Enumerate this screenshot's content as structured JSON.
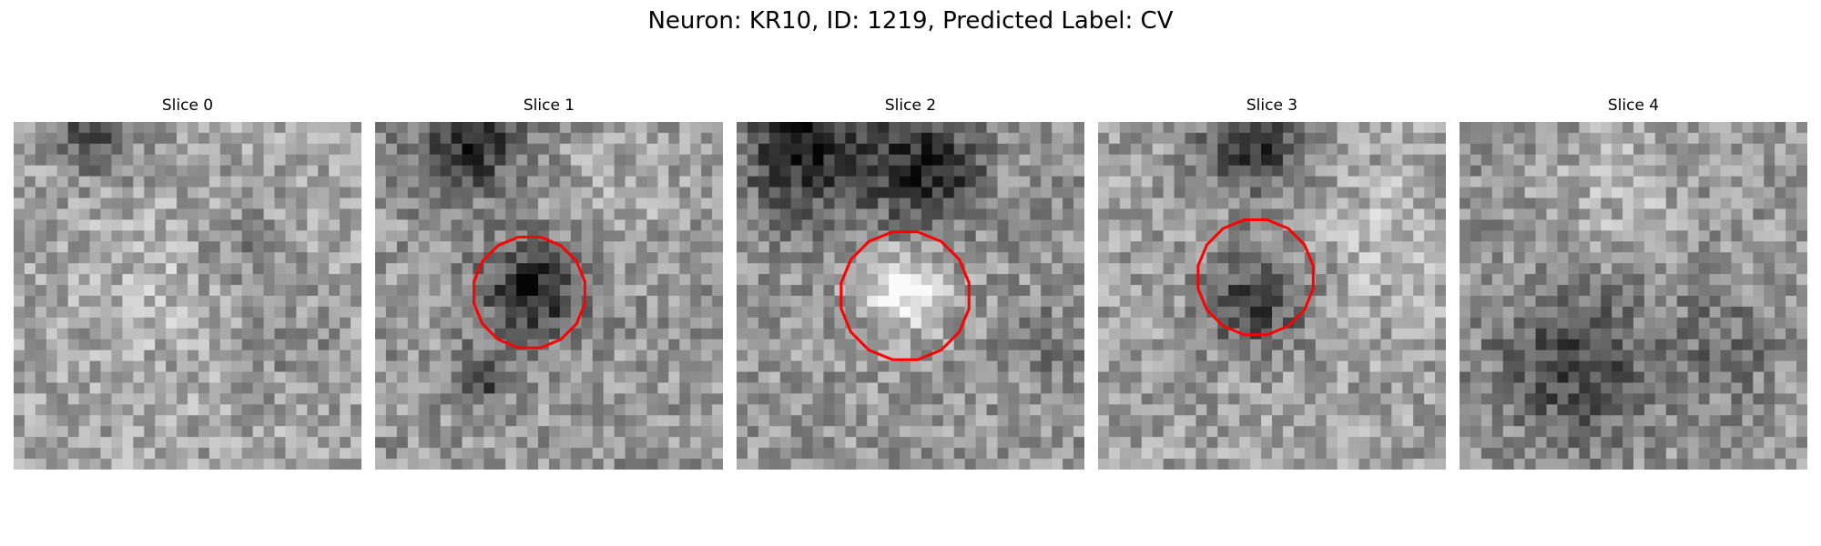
{
  "figure": {
    "title": "Neuron: KR10, ID: 1219, Predicted Label: CV"
  },
  "panels": [
    {
      "title": "Slice 0",
      "contour": false
    },
    {
      "title": "Slice 1",
      "contour": true
    },
    {
      "title": "Slice 2",
      "contour": true
    },
    {
      "title": "Slice 3",
      "contour": true
    },
    {
      "title": "Slice 4",
      "contour": false
    }
  ],
  "style": {
    "contour_color": "#ff0000",
    "colormap": "grayscale"
  }
}
